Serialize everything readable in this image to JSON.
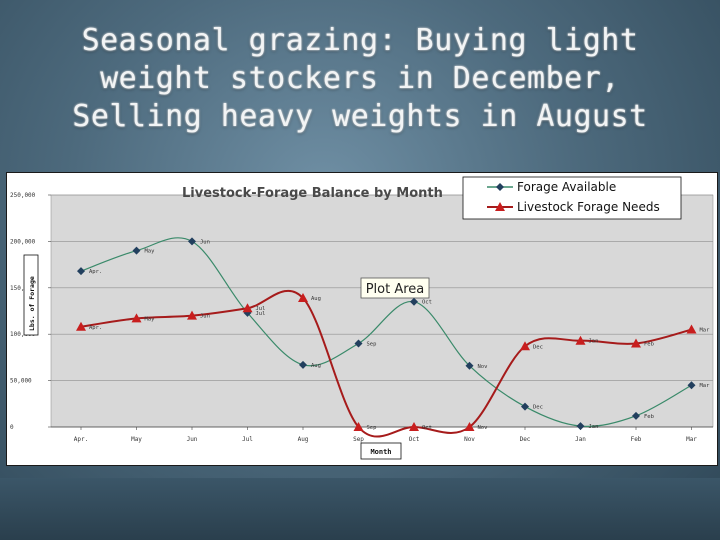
{
  "slide": {
    "title_lines": [
      "Seasonal grazing: Buying light",
      "weight stockers in December,",
      "Selling heavy weights in August"
    ]
  },
  "colors": {
    "forage": "#3a8a6a",
    "needs": "#a61b1b",
    "plot_bg": "#d8d8d8",
    "frame": "#ffffff"
  },
  "chart_data": {
    "type": "line",
    "title": "Livestock-Forage Balance by Month",
    "xlabel": "Month",
    "ylabel": "Lbs. of Forage",
    "plot_area_label": "Plot Area",
    "categories": [
      "Apr.",
      "May",
      "Jun",
      "Jul",
      "Aug",
      "Sep",
      "Oct",
      "Nov",
      "Dec",
      "Jan",
      "Feb",
      "Mar"
    ],
    "x_tick_labels": [
      "Apr.",
      "May",
      "Jun",
      "Jul",
      "Aug",
      "Sep",
      "Oct",
      "Nov",
      "Dec",
      "Jan",
      "Feb",
      "Mar"
    ],
    "y_tick_labels": [
      "0",
      "50,000",
      "100,000",
      "150,000",
      "200,000",
      "250,000"
    ],
    "y_ticks": [
      0,
      50000,
      100000,
      150000,
      200000,
      250000
    ],
    "ylim": [
      0,
      250000
    ],
    "grid": true,
    "legend_position": "top-right",
    "series": [
      {
        "name": "Forage Available",
        "color": "#3a8a6a",
        "marker": "diamond",
        "values": [
          168000,
          190000,
          200000,
          123000,
          67000,
          90000,
          135000,
          66000,
          22000,
          1000,
          12000,
          45000
        ],
        "point_labels": [
          "Apr.",
          "May",
          "Jun",
          "Jul",
          "Aug",
          "Sep",
          "Oct",
          "Nov",
          "Dec",
          "Jan",
          "Feb",
          "Mar"
        ]
      },
      {
        "name": "Livestock Forage Needs",
        "color": "#a61b1b",
        "marker": "triangle",
        "values": [
          108000,
          117000,
          120000,
          128000,
          139000,
          0,
          0,
          0,
          87000,
          93000,
          90000,
          105000
        ],
        "point_labels": [
          "Apr.",
          "May",
          "Jun",
          "Jul",
          "Aug",
          "Sep",
          "Oct",
          "Nov",
          "Dec",
          "Jan",
          "Feb",
          "Mar"
        ]
      }
    ]
  }
}
